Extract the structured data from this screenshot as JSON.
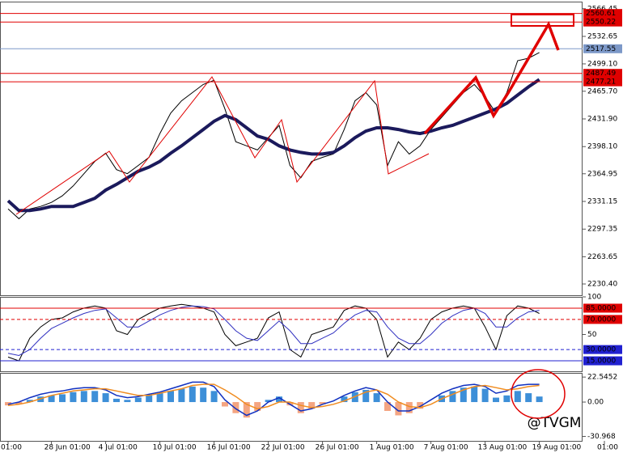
{
  "chart_data": [
    {
      "type": "line",
      "ylim": [
        2216.6,
        2575.1
      ],
      "yticks": [
        2566.45,
        2532.65,
        {
          "value": 2499.1,
          "label": "2499.10"
        },
        {
          "value": 2465.7,
          "label": "2465.70"
        },
        {
          "value": 2431.9,
          "label": "2431.90"
        },
        {
          "value": 2398.1,
          "label": "2398.10"
        },
        2364.95,
        2331.15,
        2297.35,
        2263.65,
        {
          "value": 2230.4,
          "label": "2230.40"
        }
      ],
      "categories": [
        "01:00",
        null,
        null,
        null,
        "28 Jun 01:00",
        null,
        null,
        null,
        null,
        "4 Jul 01:00",
        null,
        null,
        null,
        null,
        "10 Jul 01:00",
        null,
        null,
        null,
        null,
        "16 Jul 01:00",
        null,
        null,
        null,
        null,
        "22 Jul 01:00",
        null,
        null,
        null,
        null,
        "26 Jul 01:00",
        null,
        null,
        null,
        null,
        "1 Aug 01:00",
        null,
        null,
        null,
        null,
        "7 Aug 01:00",
        null,
        null,
        null,
        null,
        "13 Aug 01:00",
        null,
        null,
        null,
        null,
        "19 Aug 01:00",
        null,
        null,
        null,
        null,
        null,
        "01:00"
      ],
      "levels": [
        {
          "value": 2560.61,
          "color": "#e00000"
        },
        {
          "value": 2550.22,
          "color": "#e00000"
        },
        {
          "value": 2517.55,
          "color": "#7c98c8"
        },
        {
          "value": 2487.49,
          "color": "#e00000"
        },
        {
          "value": 2477.21,
          "color": "#e00000"
        }
      ],
      "series": [
        {
          "color": "#000000",
          "width": 1,
          "values": [
            2322,
            2310,
            2322,
            2325,
            2330,
            2338,
            2350,
            2365,
            2380,
            2390,
            2370,
            2365,
            2375,
            2385,
            2414,
            2439,
            2454,
            2464,
            2474,
            2479,
            2444,
            2404,
            2399,
            2394,
            2409,
            2424,
            2375,
            2360,
            2380,
            2385,
            2389,
            2419,
            2454,
            2464,
            2449,
            2375,
            2404,
            2389,
            2399,
            2419,
            2434,
            2449,
            2464,
            2474,
            2459,
            2439,
            2464,
            2503,
            2506,
            2513,
            null,
            null,
            null,
            null,
            null,
            null
          ]
        },
        {
          "color": "#1b1a5c",
          "width": 4,
          "values": [
            2332,
            2320,
            2320,
            2322,
            2325,
            2325,
            2325,
            2330,
            2335,
            2345,
            2352,
            2360,
            2368,
            2373,
            2380,
            2390,
            2399,
            2409,
            2419,
            2429,
            2436,
            2431,
            2421,
            2411,
            2407,
            2399,
            2394,
            2391,
            2389,
            2389,
            2391,
            2399,
            2409,
            2417,
            2421,
            2421,
            2419,
            2416,
            2414,
            2417,
            2421,
            2424,
            2429,
            2434,
            2439,
            2444,
            2451,
            2461,
            2471,
            2480,
            null,
            null,
            null,
            null,
            null,
            null
          ]
        }
      ]
    },
    {
      "type": "line",
      "ylim": [
        0,
        100
      ],
      "yticks": [
        100,
        50
      ],
      "levels": [
        {
          "value": 85,
          "label": "85.0000",
          "color": "#e00000"
        },
        {
          "value": 70,
          "label": "70.0000",
          "color": "#e00000",
          "dash": true
        },
        {
          "value": 30,
          "label": "30.0000",
          "color": "#2020d0",
          "dash": true
        },
        {
          "value": 15,
          "label": "15.0000",
          "color": "#2020d0"
        }
      ],
      "series": [
        {
          "color": "#000000",
          "width": 1,
          "values": [
            20,
            15,
            45,
            60,
            70,
            72,
            80,
            85,
            88,
            85,
            55,
            50,
            70,
            78,
            85,
            88,
            90,
            88,
            85,
            80,
            50,
            35,
            40,
            45,
            72,
            80,
            30,
            20,
            50,
            55,
            60,
            82,
            88,
            85,
            70,
            20,
            40,
            30,
            45,
            70,
            80,
            85,
            88,
            85,
            60,
            30,
            75,
            88,
            85,
            78,
            null,
            null,
            null,
            null,
            null,
            null
          ]
        },
        {
          "color": "#3030c0",
          "width": 1,
          "values": [
            25,
            22,
            30,
            45,
            58,
            65,
            72,
            78,
            82,
            84,
            72,
            60,
            60,
            68,
            76,
            82,
            86,
            88,
            87,
            84,
            70,
            55,
            45,
            42,
            55,
            68,
            55,
            38,
            38,
            45,
            52,
            65,
            76,
            82,
            80,
            60,
            45,
            38,
            38,
            50,
            65,
            75,
            82,
            85,
            78,
            60,
            60,
            72,
            80,
            82,
            null,
            null,
            null,
            null,
            null,
            null
          ]
        }
      ]
    },
    {
      "type": "bar",
      "ylim": [
        -35,
        26.3
      ],
      "yticks": [
        22.5452,
        {
          "value": 0,
          "label": "0.00"
        },
        -30.968
      ],
      "series": [
        {
          "kind": "bar",
          "color": "#3d8fd8",
          "neg_color": "#f4a582",
          "values": [
            -3,
            -2,
            2,
            5,
            6,
            7,
            9,
            10,
            10,
            8,
            3,
            2,
            4,
            6,
            8,
            10,
            12,
            14,
            13,
            10,
            -4,
            -10,
            -14,
            -8,
            2,
            5,
            -3,
            -10,
            -6,
            -2,
            0,
            5,
            9,
            11,
            8,
            -8,
            -12,
            -10,
            -6,
            0,
            6,
            10,
            13,
            14,
            12,
            4,
            6,
            10,
            8,
            5,
            null,
            null,
            null,
            null,
            null,
            null
          ]
        },
        {
          "kind": "line",
          "color": "#1030c0",
          "width": 1.5,
          "values": [
            -2,
            0,
            4,
            7,
            9,
            10,
            12,
            13,
            13,
            11,
            6,
            4,
            5,
            7,
            9,
            12,
            15,
            18,
            18,
            14,
            2,
            -6,
            -12,
            -8,
            0,
            4,
            -2,
            -8,
            -6,
            -2,
            1,
            6,
            10,
            13,
            11,
            0,
            -8,
            -8,
            -4,
            2,
            8,
            12,
            15,
            16,
            14,
            8,
            10,
            15,
            16,
            16,
            null,
            null,
            null,
            null,
            null,
            null
          ]
        },
        {
          "kind": "line",
          "color": "#f08c20",
          "width": 1.5,
          "values": [
            -3,
            -2,
            0,
            3,
            6,
            8,
            10,
            11,
            12,
            12,
            10,
            8,
            6,
            6,
            8,
            10,
            12,
            15,
            16,
            16,
            11,
            5,
            -2,
            -6,
            -4,
            0,
            0,
            -3,
            -5,
            -4,
            -2,
            1,
            5,
            9,
            11,
            7,
            0,
            -4,
            -5,
            -2,
            3,
            7,
            11,
            14,
            15,
            13,
            11,
            12,
            14,
            15,
            null,
            null,
            null,
            null,
            null,
            null
          ]
        }
      ]
    }
  ],
  "watermark": "@TVGM"
}
